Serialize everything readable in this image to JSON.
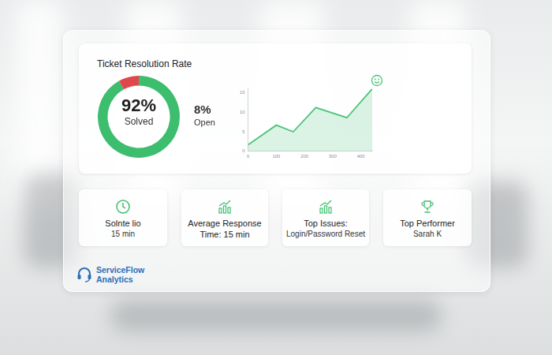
{
  "chart_data": [
    {
      "type": "doughnut",
      "title": "Ticket Resolution Rate",
      "categories": [
        "Solved",
        "Open"
      ],
      "values": [
        92,
        8
      ],
      "value_labels": [
        "92%",
        "8%"
      ],
      "colors": [
        "#3dbd6e",
        "#e0474c"
      ],
      "legend": "none"
    },
    {
      "type": "area",
      "x": [
        0,
        100,
        160,
        240,
        350,
        440
      ],
      "values": [
        1.7,
        6.7,
        5,
        11.2,
        8.6,
        16
      ],
      "color": "#4cc47a",
      "xlim": [
        0,
        440
      ],
      "xticks": [
        0,
        100,
        200,
        300,
        400
      ],
      "ylim": [
        0,
        16
      ],
      "yticks": [
        0,
        5,
        10,
        15
      ],
      "grid": false
    }
  ],
  "cards": [
    {
      "title": "Solnte lio",
      "value": "15 min"
    },
    {
      "title": "Average Response",
      "value": "Time: 15 min"
    },
    {
      "title": "Top Issues:",
      "value": "Login/Password Reset"
    },
    {
      "title": "Top Performer",
      "value": "Sarah K"
    }
  ],
  "brand": [
    "ServiceFlow",
    "Analytics"
  ]
}
